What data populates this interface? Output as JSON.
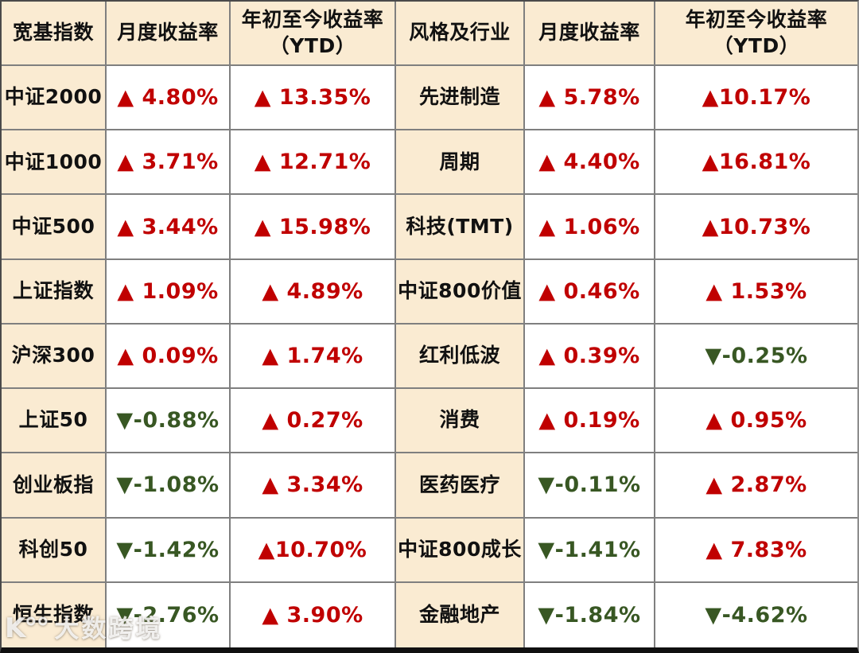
{
  "colors": {
    "positive_red": "#C00000",
    "negative_green": "#385723",
    "label_fill_beige": "#FAEBD2",
    "grid_line_gray": "#7F7F7F",
    "bottom_border_black": "#101010",
    "background": "#FFFFFF"
  },
  "chart_data": {
    "type": "table",
    "title": "",
    "columns": [
      {
        "header": "宽基指数",
        "header_line2": "",
        "kind": "label"
      },
      {
        "header": "月度收益率",
        "header_line2": "",
        "kind": "value"
      },
      {
        "header": "年初至今收益率",
        "header_line2": "（YTD）",
        "kind": "value"
      },
      {
        "header": "风格及行业",
        "header_line2": "",
        "kind": "label"
      },
      {
        "header": "月度收益率",
        "header_line2": "",
        "kind": "value"
      },
      {
        "header": "年初至今收益率",
        "header_line2": "（YTD）",
        "kind": "value"
      }
    ],
    "rows": [
      [
        "中证2000",
        "▲ 4.80%",
        "▲ 13.35%",
        "先进制造",
        "▲ 5.78%",
        "▲10.17%"
      ],
      [
        "中证1000",
        "▲ 3.71%",
        "▲ 12.71%",
        "周期",
        "▲ 4.40%",
        "▲16.81%"
      ],
      [
        "中证500",
        "▲ 3.44%",
        "▲ 15.98%",
        "科技(TMT)",
        "▲ 1.06%",
        "▲10.73%"
      ],
      [
        "上证指数",
        "▲ 1.09%",
        "▲ 4.89%",
        "中证800价值",
        "▲ 0.46%",
        "▲ 1.53%"
      ],
      [
        "沪深300",
        "▲ 0.09%",
        "▲ 1.74%",
        "红利低波",
        "▲ 0.39%",
        "▼-0.25%"
      ],
      [
        "上证50",
        "▼-0.88%",
        "▲ 0.27%",
        "消费",
        "▲ 0.19%",
        "▲ 0.95%"
      ],
      [
        "创业板指",
        "▼-1.08%",
        "▲ 3.34%",
        "医药医疗",
        "▼-0.11%",
        "▲ 2.87%"
      ],
      [
        "科创50",
        "▼-1.42%",
        "▲10.70%",
        "中证800成长",
        "▼-1.41%",
        "▲ 7.83%"
      ],
      [
        "恒生指数",
        "▼-2.76%",
        "▲ 3.90%",
        "金融地产",
        "▼-1.84%",
        "▼-4.62%"
      ]
    ],
    "value_sign_convention": {
      "up_marker": "▲",
      "down_marker": "▼"
    },
    "grid": true,
    "legend_position": "none"
  },
  "watermark": {
    "logo_text": "K°°",
    "text": "大数跨境"
  }
}
